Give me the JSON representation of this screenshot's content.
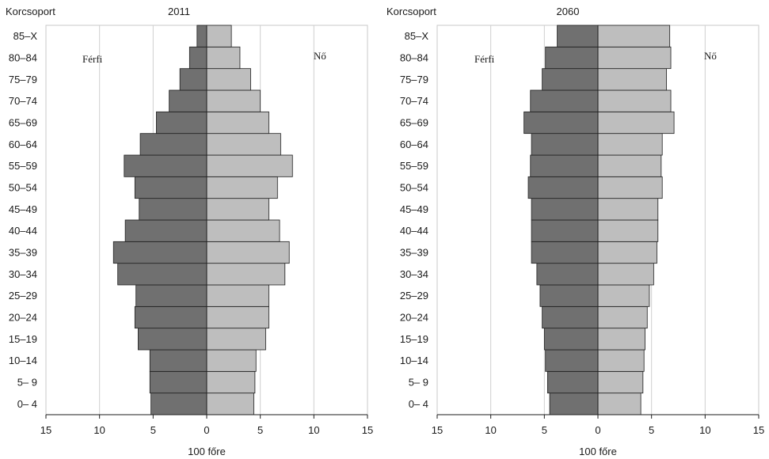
{
  "chart_data": [
    {
      "type": "bar",
      "orientation": "horizontal-diverging",
      "title": "2011",
      "ylabel": "Korcsoport",
      "xlabel": "100 főre",
      "xlim": [
        -15,
        15
      ],
      "x_ticks": [
        15,
        10,
        5,
        0,
        5,
        10,
        15
      ],
      "grid": true,
      "categories": [
        "0– 4",
        "5– 9",
        "10–14",
        "15–19",
        "20–24",
        "25–29",
        "30–34",
        "35–39",
        "40–44",
        "45–49",
        "50–54",
        "55–59",
        "60–64",
        "65–69",
        "70–74",
        "75–79",
        "80–84",
        "85–X"
      ],
      "series": [
        {
          "name": "Férfi",
          "values": [
            5.2,
            5.3,
            5.3,
            6.4,
            6.7,
            6.6,
            8.3,
            8.7,
            7.6,
            6.3,
            6.7,
            7.7,
            6.2,
            4.7,
            3.5,
            2.5,
            1.6,
            0.9
          ]
        },
        {
          "name": "Nő",
          "values": [
            4.4,
            4.5,
            4.6,
            5.5,
            5.8,
            5.8,
            7.3,
            7.7,
            6.8,
            5.8,
            6.6,
            8.0,
            6.9,
            5.8,
            5.0,
            4.1,
            3.1,
            2.3
          ]
        }
      ],
      "colors": {
        "Férfi": "#707070",
        "Nő": "#bebebe"
      }
    },
    {
      "type": "bar",
      "orientation": "horizontal-diverging",
      "title": "2060",
      "ylabel": "Korcsoport",
      "xlabel": "100 főre",
      "xlim": [
        -15,
        15
      ],
      "x_ticks": [
        15,
        10,
        5,
        0,
        5,
        10,
        15
      ],
      "grid": true,
      "categories": [
        "0– 4",
        "5– 9",
        "10–14",
        "15–19",
        "20–24",
        "25–29",
        "30–34",
        "35–39",
        "40–44",
        "45–49",
        "50–54",
        "55–59",
        "60–64",
        "65–69",
        "70–74",
        "75–79",
        "80–84",
        "85–X"
      ],
      "series": [
        {
          "name": "Férfi",
          "values": [
            4.5,
            4.7,
            4.9,
            5.0,
            5.2,
            5.4,
            5.7,
            6.2,
            6.2,
            6.2,
            6.5,
            6.3,
            6.2,
            6.9,
            6.3,
            5.2,
            4.9,
            3.8
          ]
        },
        {
          "name": "Nő",
          "values": [
            4.0,
            4.2,
            4.3,
            4.4,
            4.6,
            4.8,
            5.2,
            5.5,
            5.6,
            5.6,
            6.0,
            5.9,
            6.0,
            7.1,
            6.8,
            6.4,
            6.8,
            6.7
          ]
        }
      ],
      "colors": {
        "Férfi": "#707070",
        "Nő": "#bebebe"
      }
    }
  ]
}
